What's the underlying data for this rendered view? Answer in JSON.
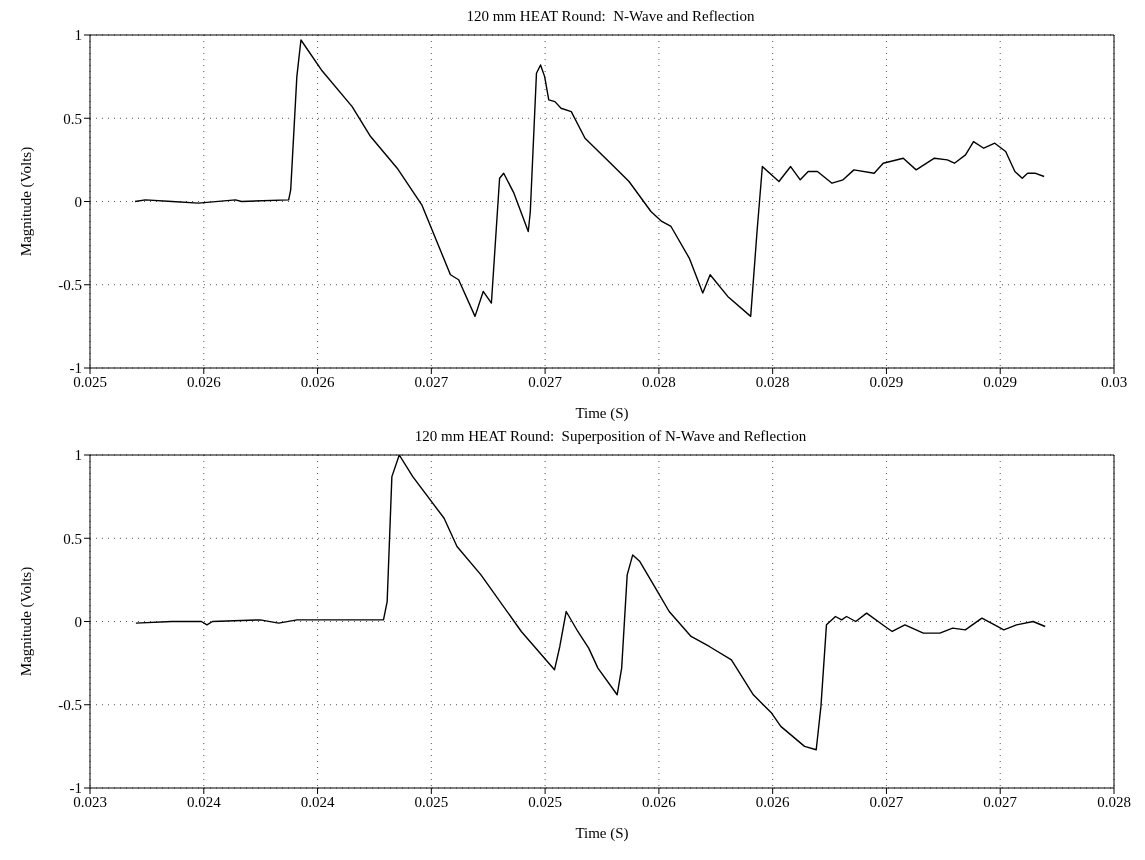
{
  "chart_data": [
    {
      "type": "line",
      "title": "120 mm HEAT Round:  N-Wave and Reflection",
      "xlabel": "Time (S)",
      "ylabel": "Magnitude (Volts)",
      "color": "#000000",
      "grid": true,
      "x": [
        0.02522,
        0.02527,
        0.0254,
        0.02553,
        0.02571,
        0.02574,
        0.02597,
        0.02598,
        0.02601,
        0.02603,
        0.02613,
        0.02628,
        0.02637,
        0.0265,
        0.02662,
        0.02676,
        0.0268,
        0.02688,
        0.02692,
        0.02696,
        0.027,
        0.02702,
        0.02707,
        0.02714,
        0.02715,
        0.02718,
        0.0272,
        0.02722,
        0.02724,
        0.02727,
        0.0273,
        0.02735,
        0.027417,
        0.027542,
        0.027632,
        0.027739,
        0.027792,
        0.027837,
        0.027926,
        0.027992,
        0.028028,
        0.028114,
        0.028226,
        0.028257,
        0.028283,
        0.028364,
        0.028421,
        0.028468,
        0.028507,
        0.028552,
        0.028623,
        0.028677,
        0.02873,
        0.028829,
        0.028873,
        0.028971,
        0.029034,
        0.029123,
        0.029186,
        0.029221,
        0.029275,
        0.029314,
        0.029364,
        0.029418,
        0.029471,
        0.029516,
        0.029552,
        0.029578,
        0.029614,
        0.029659
      ],
      "values": [
        0,
        0.01,
        0,
        -0.01,
        0.01,
        0,
        0.01,
        0.07,
        0.75,
        0.97,
        0.79,
        0.57,
        0.39,
        0.2,
        -0.02,
        -0.44,
        -0.47,
        -0.69,
        -0.54,
        -0.61,
        0.14,
        0.17,
        0.05,
        -0.18,
        -0.06,
        0.77,
        0.82,
        0.75,
        0.61,
        0.6,
        0.56,
        0.54,
        0.38,
        0.23,
        0.12,
        -0.06,
        -0.12,
        -0.15,
        -0.34,
        -0.55,
        -0.44,
        -0.57,
        -0.69,
        -0.18,
        0.21,
        0.12,
        0.21,
        0.13,
        0.18,
        0.18,
        0.11,
        0.13,
        0.19,
        0.17,
        0.23,
        0.26,
        0.19,
        0.26,
        0.25,
        0.23,
        0.28,
        0.36,
        0.32,
        0.35,
        0.3,
        0.18,
        0.14,
        0.17,
        0.17,
        0.15
      ],
      "xlim": [
        0.025,
        0.03
      ],
      "xticks": [
        {
          "value": 0.025,
          "label": "0.025"
        },
        {
          "value": 0.0255556,
          "label": "0.026"
        },
        {
          "value": 0.0261111,
          "label": "0.026"
        },
        {
          "value": 0.0266667,
          "label": "0.027"
        },
        {
          "value": 0.0272222,
          "label": "0.027"
        },
        {
          "value": 0.0277778,
          "label": "0.028"
        },
        {
          "value": 0.0283333,
          "label": "0.028"
        },
        {
          "value": 0.0288889,
          "label": "0.029"
        },
        {
          "value": 0.0294444,
          "label": "0.029"
        },
        {
          "value": 0.03,
          "label": "0.03"
        }
      ],
      "ylim": [
        -1,
        1
      ],
      "yticks": [
        -1,
        -0.5,
        0,
        0.5,
        1
      ]
    },
    {
      "type": "line",
      "title": "120 mm HEAT Round:  Superposition of N-Wave and Reflection",
      "xlabel": "Time (S)",
      "ylabel": "Magnitude (Volts)",
      "color": "#000000",
      "grid": true,
      "x": [
        0.023224,
        0.0234,
        0.023544,
        0.023571,
        0.023598,
        0.023831,
        0.023921,
        0.024011,
        0.024433,
        0.024451,
        0.024474,
        0.02451,
        0.024576,
        0.024729,
        0.024792,
        0.024909,
        0.025106,
        0.025268,
        0.025294,
        0.025325,
        0.025382,
        0.025435,
        0.02548,
        0.025574,
        0.025596,
        0.025623,
        0.02565,
        0.025685,
        0.025757,
        0.025828,
        0.025935,
        0.026024,
        0.026132,
        0.026239,
        0.026328,
        0.026373,
        0.026489,
        0.026546,
        0.026569,
        0.026596,
        0.02664,
        0.02667,
        0.026694,
        0.026739,
        0.026792,
        0.026882,
        0.026917,
        0.026979,
        0.027069,
        0.02715,
        0.027212,
        0.027274,
        0.027355,
        0.027417,
        0.027462,
        0.027524,
        0.027605,
        0.027664
      ],
      "values": [
        -0.01,
        0,
        0,
        -0.02,
        0,
        0.01,
        -0.01,
        0.01,
        0.01,
        0.12,
        0.87,
        1.0,
        0.87,
        0.62,
        0.45,
        0.28,
        -0.06,
        -0.29,
        -0.15,
        0.06,
        -0.06,
        -0.16,
        -0.28,
        -0.44,
        -0.28,
        0.28,
        0.4,
        0.36,
        0.21,
        0.06,
        -0.09,
        -0.15,
        -0.23,
        -0.44,
        -0.55,
        -0.63,
        -0.75,
        -0.77,
        -0.51,
        -0.02,
        0.03,
        0.01,
        0.03,
        0,
        0.05,
        -0.03,
        -0.06,
        -0.02,
        -0.07,
        -0.07,
        -0.04,
        -0.05,
        0.02,
        -0.02,
        -0.05,
        -0.02,
        0,
        -0.03
      ],
      "xlim": [
        0.023,
        0.028
      ],
      "xticks": [
        {
          "value": 0.023,
          "label": "0.023"
        },
        {
          "value": 0.0235556,
          "label": "0.024"
        },
        {
          "value": 0.0241111,
          "label": "0.024"
        },
        {
          "value": 0.0246667,
          "label": "0.025"
        },
        {
          "value": 0.0252222,
          "label": "0.025"
        },
        {
          "value": 0.0257778,
          "label": "0.026"
        },
        {
          "value": 0.0263333,
          "label": "0.026"
        },
        {
          "value": 0.0268889,
          "label": "0.027"
        },
        {
          "value": 0.0274444,
          "label": "0.027"
        },
        {
          "value": 0.028,
          "label": "0.028"
        }
      ],
      "ylim": [
        -1,
        1
      ],
      "yticks": [
        -1,
        -0.5,
        0,
        0.5,
        1
      ]
    }
  ]
}
